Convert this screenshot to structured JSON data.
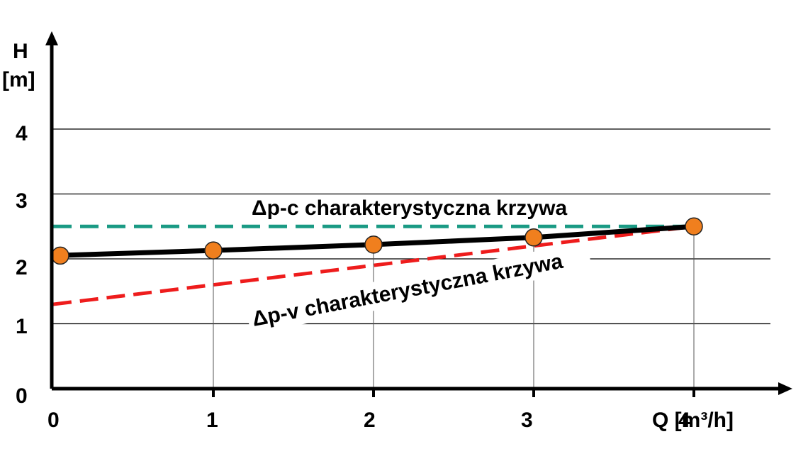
{
  "chart_data": {
    "type": "line",
    "title": "",
    "xlabel": "Q [m³/h]",
    "ylabel": {
      "name": "H",
      "unit": "[m]"
    },
    "xlim": [
      0,
      4.6
    ],
    "ylim": [
      0,
      5
    ],
    "x_ticks": [
      0,
      1,
      2,
      3,
      4
    ],
    "y_ticks": [
      0,
      1,
      2,
      3,
      4
    ],
    "grid": "horizontal",
    "series": [
      {
        "key": "pump",
        "color": "#000000",
        "style": "solid",
        "marker_color": "#f07f1e",
        "x": [
          0,
          1,
          2,
          3,
          4
        ],
        "y": [
          2.05,
          2.13,
          2.22,
          2.33,
          2.5
        ]
      },
      {
        "key": "dpc",
        "name": "Δp-c charakterystyczna krzywa",
        "color": "#1a9a84",
        "style": "dashed",
        "x": [
          0,
          4
        ],
        "y": [
          2.5,
          2.5
        ]
      },
      {
        "key": "dpv",
        "name": "Δp-v charakterystyczna krzywa",
        "color": "#ee1c1c",
        "style": "dashed",
        "x": [
          0,
          4
        ],
        "y": [
          1.3,
          2.5
        ]
      }
    ],
    "annotations": {
      "dpc_label": "Δp-c charakterystyczna krzywa",
      "dpv_label": "Δp-v charakterystyczna krzywa"
    }
  }
}
